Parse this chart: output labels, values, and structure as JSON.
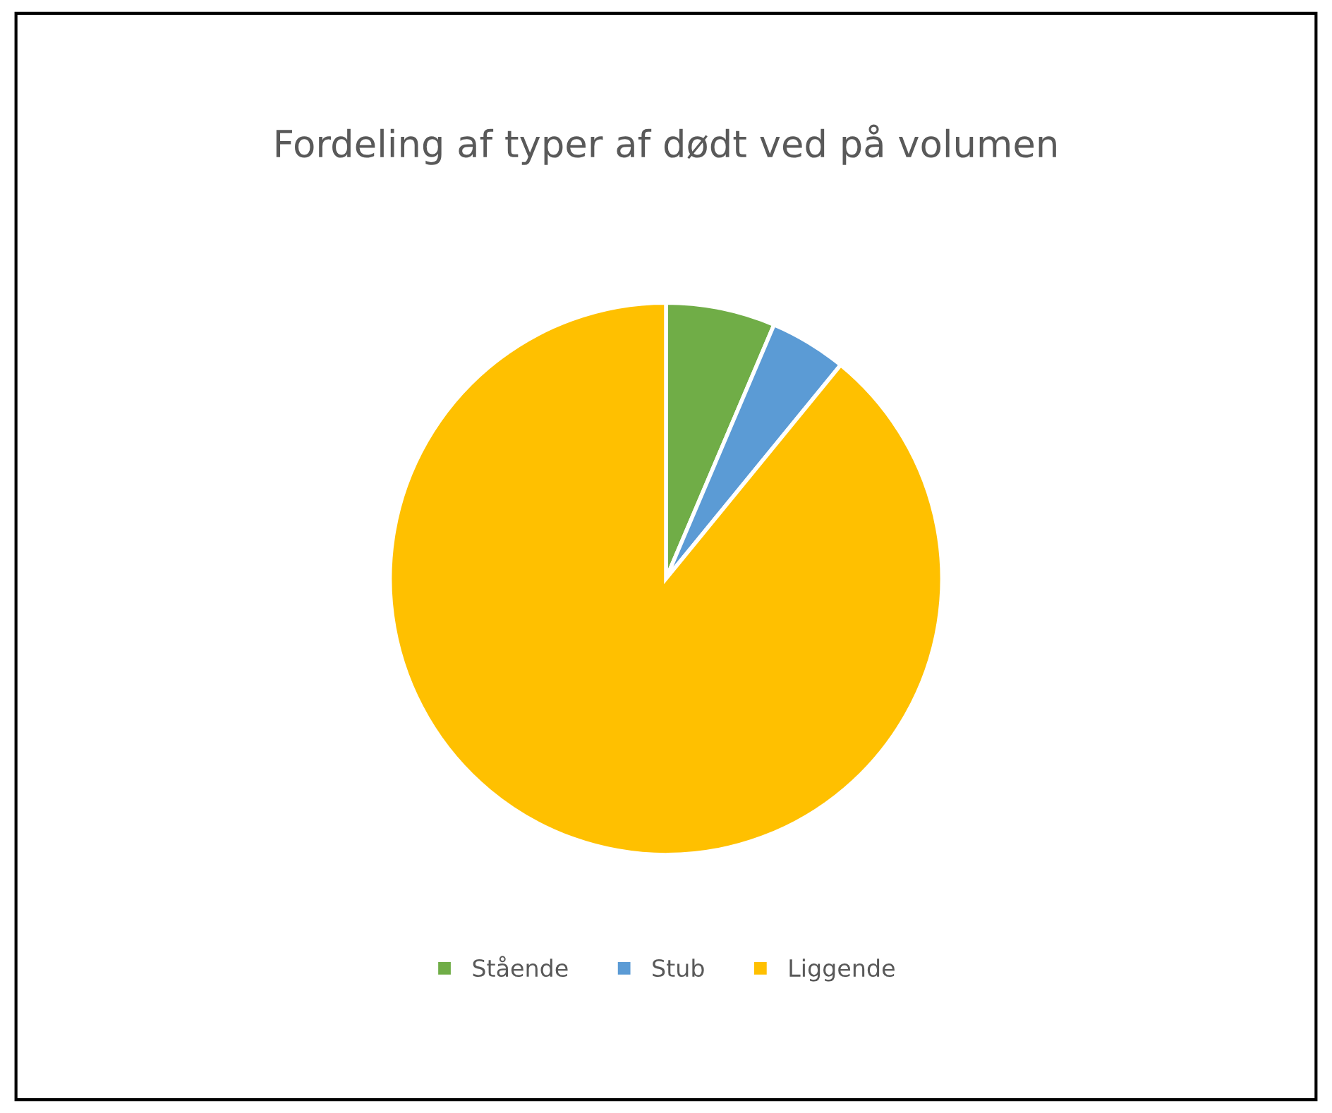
{
  "chart_data": {
    "type": "pie",
    "title": "Fordeling af typer af dødt ved på volumen",
    "categories": [
      "Stående",
      "Stub",
      "Liggende"
    ],
    "values": [
      6.4,
      4.5,
      89.1
    ],
    "colors": [
      "#70ad47",
      "#5b9bd5",
      "#ffc000"
    ],
    "legend": "bottom"
  }
}
